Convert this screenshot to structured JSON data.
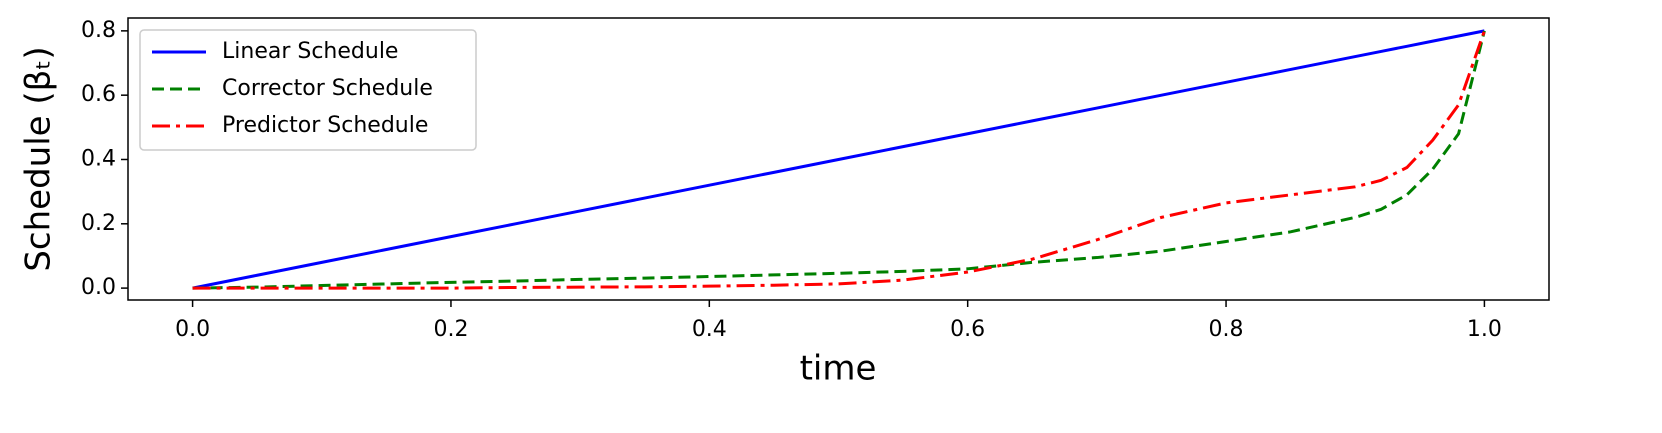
{
  "chart_data": {
    "type": "line",
    "xlabel": "time",
    "ylabel": "Schedule (βₜ)",
    "x": [
      0,
      0.05,
      0.1,
      0.15,
      0.2,
      0.25,
      0.3,
      0.35,
      0.4,
      0.45,
      0.5,
      0.55,
      0.6,
      0.65,
      0.7,
      0.75,
      0.8,
      0.85,
      0.9,
      0.92,
      0.94,
      0.96,
      0.98,
      1.0
    ],
    "series": [
      {
        "name": "Linear Schedule",
        "color": "#0000ff",
        "style": "solid",
        "values": [
          0,
          0.04,
          0.08,
          0.12,
          0.16,
          0.2,
          0.24,
          0.28,
          0.32,
          0.36,
          0.4,
          0.44,
          0.48,
          0.52,
          0.56,
          0.6,
          0.64,
          0.68,
          0.72,
          0.736,
          0.752,
          0.768,
          0.784,
          0.8
        ]
      },
      {
        "name": "Corrector Schedule",
        "color": "#008000",
        "style": "dashed",
        "values": [
          0,
          0.003,
          0.008,
          0.013,
          0.018,
          0.022,
          0.027,
          0.031,
          0.036,
          0.041,
          0.046,
          0.052,
          0.06,
          0.08,
          0.095,
          0.115,
          0.145,
          0.175,
          0.22,
          0.245,
          0.29,
          0.37,
          0.48,
          0.8
        ]
      },
      {
        "name": "Predictor Schedule",
        "color": "#ff0000",
        "style": "dashdot",
        "values": [
          0,
          0,
          0,
          0,
          0,
          0.002,
          0.003,
          0.004,
          0.006,
          0.009,
          0.013,
          0.025,
          0.05,
          0.09,
          0.15,
          0.22,
          0.265,
          0.29,
          0.315,
          0.335,
          0.375,
          0.46,
          0.57,
          0.8
        ]
      }
    ],
    "xlim": [
      -0.05,
      1.05
    ],
    "xticks": [
      {
        "value": 0,
        "label": "0.0"
      },
      {
        "value": 0.2,
        "label": "0.2"
      },
      {
        "value": 0.4,
        "label": "0.4"
      },
      {
        "value": 0.6,
        "label": "0.6"
      },
      {
        "value": 0.8,
        "label": "0.8"
      },
      {
        "value": 1.0,
        "label": "1.0"
      }
    ],
    "ylim": [
      -0.037,
      0.84
    ],
    "yticks": [
      {
        "value": 0,
        "label": "0.0"
      },
      {
        "value": 0.2,
        "label": "0.2"
      },
      {
        "value": 0.4,
        "label": "0.4"
      },
      {
        "value": 0.6,
        "label": "0.6"
      },
      {
        "value": 0.8,
        "label": "0.8"
      }
    ],
    "legend": "upper-left",
    "grid": false
  }
}
